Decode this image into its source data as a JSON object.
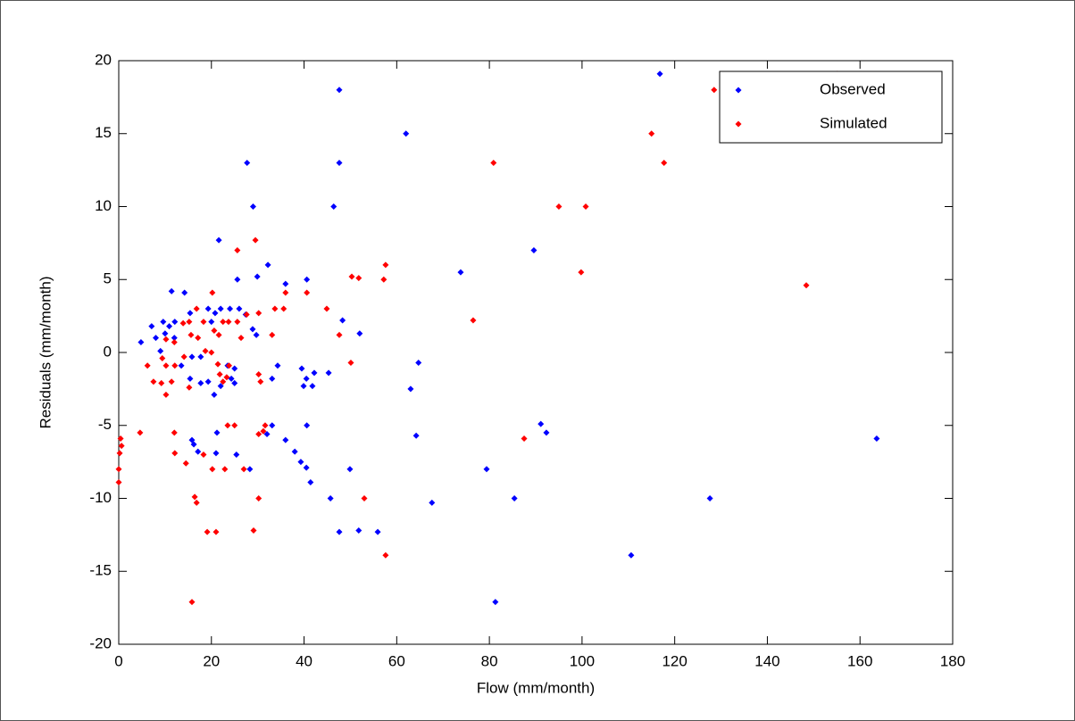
{
  "chart_data": {
    "type": "scatter",
    "x_label": "Flow (mm/month)",
    "y_label": "Residuals (mm/month)",
    "xlim": [
      0,
      180
    ],
    "xticks": [
      0,
      20,
      40,
      60,
      80,
      100,
      120,
      140,
      160,
      180
    ],
    "ylim": [
      -20,
      20
    ],
    "yticks": [
      -20,
      -15,
      -10,
      -5,
      0,
      5,
      10,
      15,
      20
    ],
    "grid": false,
    "legend": "northeast",
    "series": [
      {
        "name": "Observed",
        "color": "#0000ff",
        "x": [
          116.8,
          47.6,
          62,
          27.7,
          47.6,
          29,
          46.4,
          21.6,
          89.6,
          73.8,
          32.2,
          36,
          40.6,
          25.6,
          29.9,
          52,
          48.3,
          11.4,
          14.2,
          4.8,
          7.1,
          9.6,
          10.9,
          12.1,
          10,
          12,
          8,
          15.4,
          19.3,
          20.8,
          22,
          24,
          26,
          27.4,
          20,
          28.9,
          29.7,
          9,
          15.8,
          17.7,
          13.5,
          23.5,
          25,
          34.3,
          39.5,
          42.2,
          45.3,
          64.7,
          63,
          40.5,
          39.9,
          41.8,
          33.1,
          24.3,
          25,
          15.4,
          17.7,
          19.3,
          20.6,
          22,
          64.2,
          33.1,
          40.6,
          32,
          21.2,
          15.8,
          36,
          16.2,
          17.1,
          21,
          25.4,
          38,
          39.3,
          28.3,
          40.5,
          49.9,
          79.4,
          41.4,
          45.7,
          85.4,
          67.6,
          51.8,
          47.6,
          55.9,
          110.6,
          81.3,
          91.1,
          92.3,
          127.6,
          163.6
        ],
        "values": [
          19.1,
          18,
          15,
          13,
          13,
          10,
          10,
          7.7,
          7,
          5.5,
          6,
          4.7,
          5,
          5,
          5.2,
          1.3,
          2.2,
          4.2,
          4.1,
          0.7,
          1.8,
          2.1,
          1.8,
          2.1,
          1.3,
          1,
          1,
          2.7,
          3,
          2.7,
          3,
          3,
          3,
          2.6,
          2.1,
          1.6,
          1.2,
          0.1,
          -0.3,
          -0.3,
          -0.9,
          -0.9,
          -1.1,
          -0.9,
          -1.1,
          -1.4,
          -1.4,
          -0.7,
          -2.5,
          -1.8,
          -2.3,
          -2.3,
          -1.8,
          -1.8,
          -2.1,
          -1.8,
          -2.1,
          -2,
          -2.9,
          -2.3,
          -5.7,
          -5,
          -5,
          -5.6,
          -5.5,
          -6,
          -6,
          -6.3,
          -6.8,
          -6.9,
          -7,
          -6.8,
          -7.5,
          -8,
          -7.9,
          -8,
          -8,
          -8.9,
          -10,
          -10,
          -10.3,
          -12.2,
          -12.3,
          -12.3,
          -13.9,
          -17.1,
          -4.9,
          -5.5,
          -10,
          -5.9
        ]
      },
      {
        "name": "Simulated",
        "color": "#ff0000",
        "x": [
          155,
          128.5,
          115,
          80.9,
          117.7,
          95,
          100.8,
          29.5,
          25.6,
          99.8,
          148.4,
          57.6,
          57.2,
          50.3,
          51.8,
          40.6,
          36,
          20.2,
          33.7,
          35.6,
          44.9,
          30.2,
          27.6,
          76.5,
          16.8,
          47.6,
          13.9,
          15.2,
          18.3,
          22.5,
          23.7,
          25.6,
          20.6,
          15.6,
          17.1,
          21.6,
          26.4,
          33.1,
          12,
          10.2,
          18.7,
          20,
          10.2,
          12.1,
          6.2,
          14.1,
          9.4,
          50.1,
          21.4,
          23.8,
          30.2,
          30.6,
          7.5,
          9.2,
          11.4,
          10.2,
          15.2,
          21.8,
          22.5,
          23.3,
          4.6,
          0.4,
          0.6,
          0.2,
          0,
          0,
          12,
          23.5,
          25,
          31.6,
          30.2,
          31.2,
          12.1,
          14.5,
          18.3,
          20.2,
          22.9,
          27,
          87.5,
          16.4,
          16.8,
          30.2,
          53,
          19.1,
          21,
          29.1,
          57.6,
          15.8
        ],
        "values": [
          19.1,
          18,
          15,
          13,
          13,
          10,
          10,
          7.7,
          7,
          5.5,
          4.6,
          6,
          5,
          5.2,
          5.1,
          4.1,
          4.1,
          4.1,
          3,
          3,
          3,
          2.7,
          2.6,
          2.2,
          3,
          1.2,
          2,
          2.1,
          2.1,
          2.1,
          2.1,
          2.1,
          1.5,
          1.2,
          1,
          1.2,
          1,
          1.2,
          0.7,
          0.9,
          0.1,
          0,
          -0.9,
          -0.9,
          -0.9,
          -0.3,
          -0.4,
          -0.7,
          -0.8,
          -0.9,
          -1.5,
          -2,
          -2,
          -2.1,
          -2,
          -2.9,
          -2.4,
          -1.5,
          -2,
          -1.7,
          -5.5,
          -5.9,
          -6.4,
          -6.9,
          -8,
          -8.9,
          -5.5,
          -5,
          -5,
          -5,
          -5.6,
          -5.4,
          -6.9,
          -7.6,
          -7,
          -8,
          -8,
          -8,
          -5.9,
          -9.9,
          -10.3,
          -10,
          -10,
          -12.3,
          -12.3,
          -12.2,
          -13.9,
          -17.1
        ]
      }
    ]
  }
}
